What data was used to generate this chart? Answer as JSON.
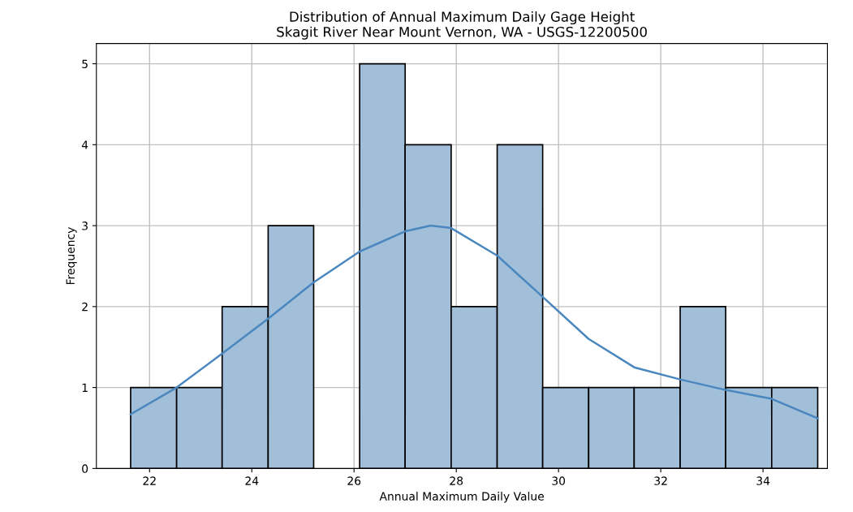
{
  "chart_data": {
    "type": "histogram",
    "title": "Distribution of Annual Maximum Daily Gage Height\nSkagit River Near Mount Vernon, WA - USGS-12200500",
    "xlabel": "Annual Maximum Daily Value",
    "ylabel": "Frequency",
    "bins": [
      21.63,
      22.53,
      23.42,
      24.32,
      25.21,
      26.11,
      27.0,
      27.9,
      28.8,
      29.69,
      30.59,
      31.48,
      32.38,
      33.27,
      34.17,
      35.07
    ],
    "values": [
      1,
      1,
      2,
      3,
      0,
      5,
      4,
      2,
      4,
      1,
      1,
      1,
      2,
      1,
      1
    ],
    "color": "#a2bfda",
    "series": [
      {
        "type": "line",
        "color": "#4a87bf",
        "x": [
          21.63,
          22.53,
          23.42,
          24.32,
          25.21,
          26.11,
          27.0,
          27.5,
          27.9,
          28.8,
          29.69,
          30.59,
          31.48,
          32.38,
          33.27,
          34.17,
          35.07
        ],
        "values": [
          0.67,
          1.0,
          1.42,
          1.85,
          2.3,
          2.68,
          2.93,
          3.0,
          2.97,
          2.63,
          2.12,
          1.6,
          1.25,
          1.1,
          0.97,
          0.86,
          0.62
        ]
      }
    ],
    "xlim": [
      20.96,
      35.26
    ],
    "xticks": [
      22,
      24,
      26,
      28,
      30,
      32,
      34
    ],
    "ylim": [
      0,
      5.25
    ],
    "yticks": [
      0,
      1,
      2,
      3,
      4,
      5
    ],
    "grid": true
  }
}
